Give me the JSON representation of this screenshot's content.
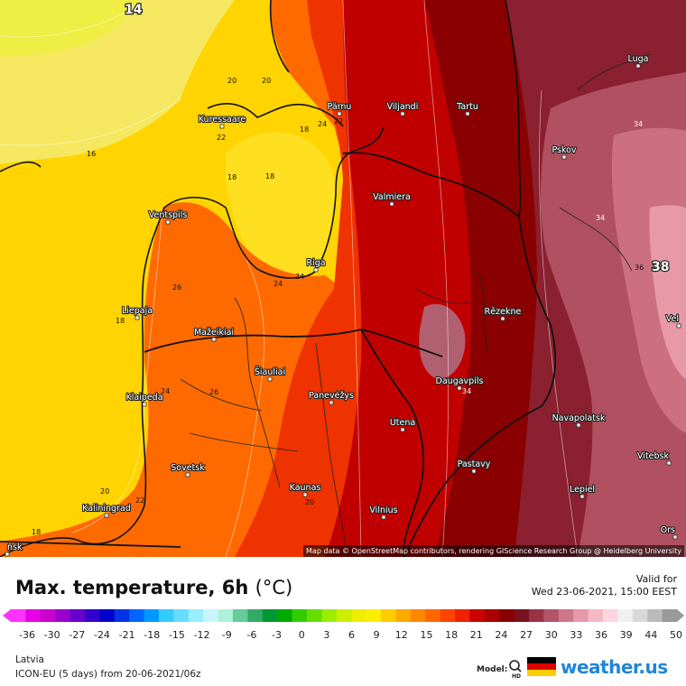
{
  "map": {
    "attribution": "Map data © OpenStreetMap contributors, rendering GIScience Research Group @ Heidelberg University",
    "cities": [
      {
        "name": "Luga",
        "lon": 707,
        "lat": 73
      },
      {
        "name": "Pärnu",
        "lon": 376,
        "lat": 126
      },
      {
        "name": "Viljandi",
        "lon": 446,
        "lat": 126
      },
      {
        "name": "Tartu",
        "lon": 518,
        "lat": 126
      },
      {
        "name": "Kuressaare",
        "lon": 246,
        "lat": 140
      },
      {
        "name": "Pskov",
        "lon": 625,
        "lat": 174
      },
      {
        "name": "Valmiera",
        "lon": 434,
        "lat": 226
      },
      {
        "name": "Ventspils",
        "lon": 186,
        "lat": 246
      },
      {
        "name": "Riga",
        "lon": 350,
        "lat": 299
      },
      {
        "name": "Liepaja",
        "lon": 152,
        "lat": 352
      },
      {
        "name": "Rēzekne",
        "lon": 557,
        "lat": 353
      },
      {
        "name": "Mažeikiai",
        "lon": 237,
        "lat": 376
      },
      {
        "name": "Šiauliai",
        "lon": 299,
        "lat": 420
      },
      {
        "name": "Klaipeda",
        "lon": 160,
        "lat": 448
      },
      {
        "name": "Panevėžys",
        "lon": 367,
        "lat": 446
      },
      {
        "name": "Daugavpils",
        "lon": 509,
        "lat": 430
      },
      {
        "name": "Utena",
        "lon": 446,
        "lat": 476
      },
      {
        "name": "Navapolatsk",
        "lon": 641,
        "lat": 471
      },
      {
        "name": "Vitebsk",
        "lon": 741,
        "lat": 513
      },
      {
        "name": "Sovetsk",
        "lon": 208,
        "lat": 526
      },
      {
        "name": "Pastavy",
        "lon": 525,
        "lat": 522
      },
      {
        "name": "Kaunas",
        "lon": 338,
        "lat": 548
      },
      {
        "name": "Lepiel",
        "lon": 645,
        "lat": 550
      },
      {
        "name": "Kaliningrad",
        "lon": 118,
        "lat": 571
      },
      {
        "name": "Vilnius",
        "lon": 425,
        "lat": 573
      },
      {
        "name": "Orsha",
        "lon": 748,
        "lat": 595
      },
      {
        "name": "Velizh",
        "lon": 752,
        "lat": 361
      },
      {
        "name": "Minsk",
        "lon": 8,
        "lat": 614
      }
    ],
    "city_labels": {
      "Luga": "Luga",
      "Pärnu": "Pärnu",
      "Viljandi": "Viljandi",
      "Tartu": "Tartu",
      "Kuressaare": "Kuressaare",
      "Pskov": "Pskov",
      "Valmiera": "Valmiera",
      "Ventspils": "Ventspils",
      "Riga": "Riga",
      "Liepaja": "Liepaja",
      "Rēzekne": "Rēzekne",
      "Mažeikiai": "Mažeikiai",
      "Šiauliai": "Šiauliai",
      "Klaipeda": "Klaipeda",
      "Panevėžys": "Panevėžys",
      "Daugavpils": "Daugavpils",
      "Utena": "Utena",
      "Navapolatsk": "Navapolatsk",
      "Vitebsk": "Vitebsk",
      "Sovetsk": "Sovetsk",
      "Pastavy": "Pastavy",
      "Kaunas": "Kaunas",
      "Lepiel": "Lepiel",
      "Kaliningrad": "Kaliningrad",
      "Vilnius": "Vilnius",
      "Orsha": "Ors",
      "Velizh": "Vel",
      "Minsk": "ńsk"
    },
    "isoline_labels": [
      "14",
      "16",
      "18",
      "18",
      "20",
      "20",
      "22",
      "24",
      "24",
      "26",
      "18",
      "24",
      "22",
      "20",
      "20",
      "22",
      "18",
      "24",
      "26",
      "34",
      "34",
      "36",
      "34",
      "38",
      "18"
    ],
    "highlight_value": "38",
    "top_value": "14"
  },
  "legend": {
    "title": "Max. temperature, 6h",
    "unit": "(°C)",
    "valid_for_label": "Valid for",
    "valid_time": "Wed 23-06-2021, 15:00 EEST",
    "ticks": [
      "-36",
      "-30",
      "-27",
      "-24",
      "-21",
      "-18",
      "-15",
      "-12",
      "-9",
      "-6",
      "-3",
      "0",
      "3",
      "6",
      "9",
      "12",
      "15",
      "18",
      "21",
      "24",
      "27",
      "30",
      "33",
      "36",
      "39",
      "44",
      "50"
    ],
    "colors": [
      "#ff33ff",
      "#e600e6",
      "#cc00cc",
      "#9900cc",
      "#6600cc",
      "#3300cc",
      "#0000cc",
      "#0033e6",
      "#0066ff",
      "#0099ff",
      "#33ccff",
      "#66ddff",
      "#99eeff",
      "#c8f5ff",
      "#aef0d8",
      "#66cc99",
      "#33aa66",
      "#009933",
      "#00aa00",
      "#33cc00",
      "#66dd00",
      "#99ee00",
      "#ccee00",
      "#eeee00",
      "#ffee00",
      "#ffcc00",
      "#ffaa00",
      "#ff8800",
      "#ff6600",
      "#ff4400",
      "#ee2200",
      "#cc0000",
      "#aa0000",
      "#880000",
      "#7a1020",
      "#993344",
      "#b35566",
      "#cc7788",
      "#e699aa",
      "#f5b8c5",
      "#fbd6de",
      "#f0f0f0",
      "#d8d8d8",
      "#bbbbbb",
      "#999999"
    ]
  },
  "footer": {
    "region": "Latvia",
    "model_run": "ICON-EU (5 days) from 20-06-2021/06z",
    "model_label": "Model:",
    "brand": "weather.us"
  },
  "colors": {
    "sea_yellow": "#ffd400",
    "land_orange": "#ff6a00",
    "hot_red": "#b00000",
    "very_hot": "#7a0010",
    "pink_hot": "#c06070",
    "brand_blue": "#1e86d9"
  }
}
